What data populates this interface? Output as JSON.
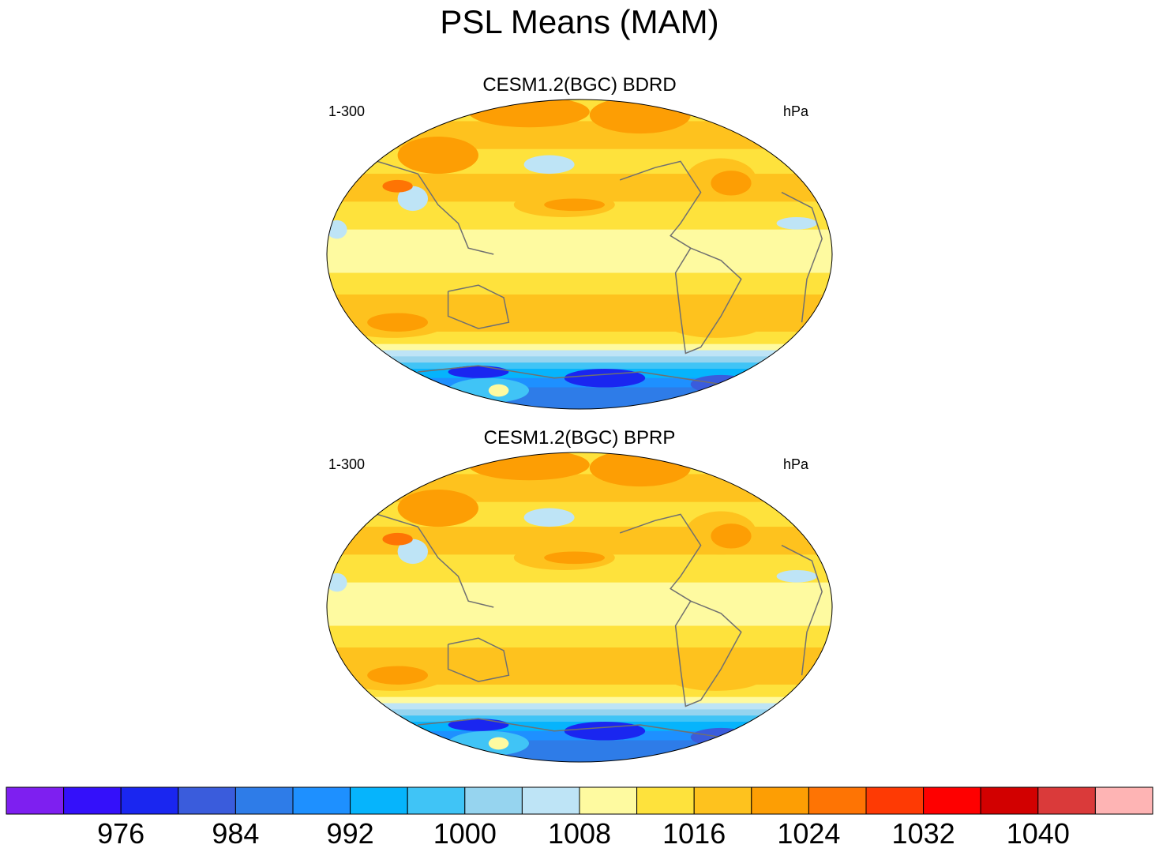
{
  "figure": {
    "title": "PSL Means (MAM)"
  },
  "panels": [
    {
      "title": "CESM1.2(BGC) BDRD",
      "left_label": "1-300",
      "right_label": "hPa"
    },
    {
      "title": "CESM1.2(BGC) BPRP",
      "left_label": "1-300",
      "right_label": "hPa"
    }
  ],
  "chart_data": {
    "type": "heatmap",
    "title": "PSL Means (MAM)",
    "variable": "PSL",
    "units": "hPa",
    "projection": "Robinson",
    "panels": [
      "CESM1.2(BGC) BDRD",
      "CESM1.2(BGC) BPRP"
    ],
    "colorbar": {
      "levels": [
        972,
        976,
        980,
        984,
        988,
        992,
        996,
        1000,
        1004,
        1008,
        1012,
        1016,
        1020,
        1024,
        1028,
        1032,
        1036,
        1040,
        1044
      ],
      "labels": [
        "976",
        "984",
        "992",
        "1000",
        "1008",
        "1016",
        "1024",
        "1032",
        "1040"
      ],
      "colors": [
        "#7e1ff0",
        "#3410fa",
        "#1a26f0",
        "#3a5cdc",
        "#2e7ce8",
        "#1e90ff",
        "#06b4fc",
        "#40c4f6",
        "#96d4ef",
        "#bee4f6",
        "#fefaa0",
        "#fee23c",
        "#fec21e",
        "#fd9e04",
        "#fe7404",
        "#fe3a04",
        "#fe0000",
        "#d20000",
        "#da3a3a",
        "#feb4b4"
      ]
    }
  }
}
